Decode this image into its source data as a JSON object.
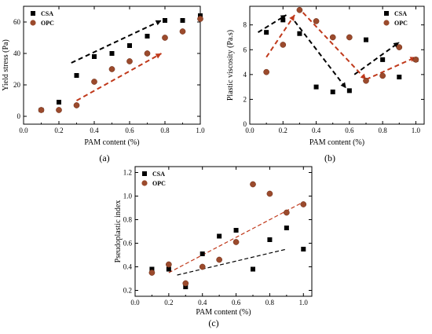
{
  "colors": {
    "csa": "#000000",
    "opc": "#9b4a2c",
    "trend_csa": "#000000",
    "trend_opc": "#c0391b"
  },
  "chart_data": [
    {
      "panel": "(a)",
      "type": "scatter",
      "xlabel": "PAM content (%)",
      "ylabel": "Yield stress (Pa)",
      "xlim": [
        0.0,
        1.0
      ],
      "ylim": [
        -5,
        70
      ],
      "xticks": [
        "0.0",
        "0.2",
        "0.4",
        "0.6",
        "0.8",
        "1.0"
      ],
      "yticks": [
        "0",
        "20",
        "40",
        "60"
      ],
      "legend": {
        "placement": "top-left",
        "entries": [
          "CSA",
          "OPC"
        ]
      },
      "series": [
        {
          "name": "CSA",
          "marker": "square",
          "x": [
            0.1,
            0.2,
            0.3,
            0.4,
            0.5,
            0.6,
            0.7,
            0.8,
            0.9,
            1.0
          ],
          "y": [
            4,
            9,
            26,
            38,
            40,
            45,
            51,
            61,
            61,
            64
          ]
        },
        {
          "name": "OPC",
          "marker": "circle",
          "x": [
            0.1,
            0.2,
            0.3,
            0.4,
            0.5,
            0.6,
            0.7,
            0.8,
            0.9,
            1.0
          ],
          "y": [
            4,
            4,
            7,
            22,
            30,
            35,
            40,
            50,
            54,
            62
          ]
        }
      ],
      "trends": [
        {
          "series": "CSA",
          "points": [
            [
              0.27,
              34
            ],
            [
              0.78,
              61
            ]
          ]
        },
        {
          "series": "OPC",
          "points": [
            [
              0.3,
              10
            ],
            [
              0.78,
              40
            ]
          ]
        }
      ]
    },
    {
      "panel": "(b)",
      "type": "scatter",
      "xlabel": "PAM content (%)",
      "ylabel": "Plastic viscosity (Pa.s)",
      "xlim": [
        0.0,
        1.05
      ],
      "ylim": [
        0,
        9.5
      ],
      "xticks": [
        "0.0",
        "0.2",
        "0.4",
        "0.6",
        "0.8",
        "1.0"
      ],
      "yticks": [
        "0",
        "2",
        "4",
        "6",
        "8"
      ],
      "legend": {
        "placement": "top-right",
        "entries": [
          "CSA",
          "OPC"
        ]
      },
      "series": [
        {
          "name": "CSA",
          "marker": "square",
          "x": [
            0.1,
            0.2,
            0.3,
            0.4,
            0.5,
            0.6,
            0.7,
            0.8,
            0.9,
            1.0
          ],
          "y": [
            7.4,
            8.4,
            7.3,
            3.0,
            2.6,
            2.7,
            6.8,
            5.2,
            3.8,
            5.2
          ]
        },
        {
          "name": "OPC",
          "marker": "circle",
          "x": [
            0.1,
            0.2,
            0.3,
            0.4,
            0.5,
            0.6,
            0.7,
            0.8,
            0.9,
            1.0
          ],
          "y": [
            4.2,
            6.4,
            9.2,
            8.3,
            7.0,
            7.0,
            3.5,
            3.9,
            6.2,
            5.2
          ]
        }
      ],
      "trends": [
        {
          "series": "CSA",
          "points": [
            [
              0.05,
              7.4
            ],
            [
              0.22,
              8.8
            ]
          ]
        },
        {
          "series": "CSA",
          "points": [
            [
              0.27,
              8.3
            ],
            [
              0.58,
              2.9
            ]
          ]
        },
        {
          "series": "CSA",
          "points": [
            [
              0.63,
              4.0
            ],
            [
              0.9,
              6.6
            ]
          ]
        },
        {
          "series": "OPC",
          "points": [
            [
              0.1,
              5.4
            ],
            [
              0.27,
              8.8
            ]
          ]
        },
        {
          "series": "OPC",
          "points": [
            [
              0.32,
              9.0
            ],
            [
              0.7,
              3.6
            ]
          ]
        },
        {
          "series": "OPC",
          "points": [
            [
              0.7,
              3.6
            ],
            [
              1.0,
              5.4
            ]
          ]
        }
      ]
    },
    {
      "panel": "(c)",
      "type": "scatter",
      "xlabel": "PAM content (%)",
      "ylabel": "Pseudoplastic index",
      "xlim": [
        0.0,
        1.05
      ],
      "ylim": [
        0.15,
        1.25
      ],
      "xticks": [
        "0.0",
        "0.2",
        "0.4",
        "0.6",
        "0.8",
        "1.0"
      ],
      "yticks": [
        "0.2",
        "0.4",
        "0.6",
        "0.8",
        "1.0",
        "1.2"
      ],
      "legend": {
        "placement": "top-left",
        "entries": [
          "CSA",
          "OPC"
        ]
      },
      "series": [
        {
          "name": "CSA",
          "marker": "square",
          "x": [
            0.1,
            0.2,
            0.3,
            0.4,
            0.5,
            0.6,
            0.7,
            0.8,
            0.9,
            1.0
          ],
          "y": [
            0.38,
            0.38,
            0.23,
            0.51,
            0.66,
            0.71,
            0.38,
            0.63,
            0.73,
            0.55
          ]
        },
        {
          "name": "OPC",
          "marker": "circle",
          "x": [
            0.1,
            0.2,
            0.3,
            0.4,
            0.5,
            0.6,
            0.7,
            0.8,
            0.9,
            1.0
          ],
          "y": [
            0.35,
            0.42,
            0.26,
            0.4,
            0.46,
            0.61,
            1.1,
            1.02,
            0.86,
            0.93
          ]
        }
      ],
      "trends": [
        {
          "series": "CSA",
          "points": [
            [
              0.25,
              0.33
            ],
            [
              0.9,
              0.55
            ]
          ]
        },
        {
          "series": "OPC",
          "points": [
            [
              0.2,
              0.35
            ],
            [
              1.0,
              0.95
            ]
          ]
        }
      ]
    }
  ]
}
